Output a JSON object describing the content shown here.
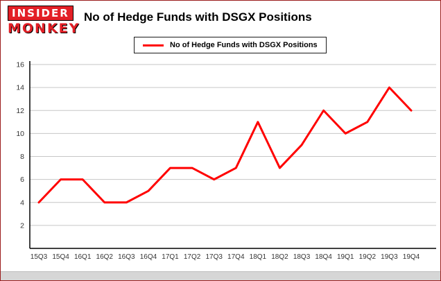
{
  "header": {
    "logo_line1": "INSIDER",
    "logo_line2": "MONKEY",
    "title": "No of Hedge Funds with DSGX Positions"
  },
  "legend": {
    "label": "No of Hedge Funds with DSGX Positions",
    "color": "#ff0000"
  },
  "chart_data": {
    "type": "line",
    "title": "No of Hedge Funds with DSGX Positions",
    "categories": [
      "15Q3",
      "15Q4",
      "16Q1",
      "16Q2",
      "16Q3",
      "16Q4",
      "17Q1",
      "17Q2",
      "17Q3",
      "17Q4",
      "18Q1",
      "18Q2",
      "18Q3",
      "18Q4",
      "19Q1",
      "19Q2",
      "19Q3",
      "19Q4"
    ],
    "series": [
      {
        "name": "No of Hedge Funds with DSGX Positions",
        "color": "#ff0000",
        "values": [
          4,
          6,
          6,
          4,
          4,
          5,
          7,
          7,
          6,
          7,
          11,
          7,
          9,
          12,
          10,
          11,
          14,
          12
        ]
      }
    ],
    "xlabel": "",
    "ylabel": "",
    "ylim": [
      0,
      16
    ],
    "yticks": [
      2,
      4,
      6,
      8,
      10,
      12,
      14,
      16
    ],
    "grid": true,
    "legend_position": "top",
    "colors": {
      "gridline": "#c6c6c6",
      "axis": "#000000",
      "tick_label": "#333333",
      "plot_background": "#ffffff"
    }
  }
}
